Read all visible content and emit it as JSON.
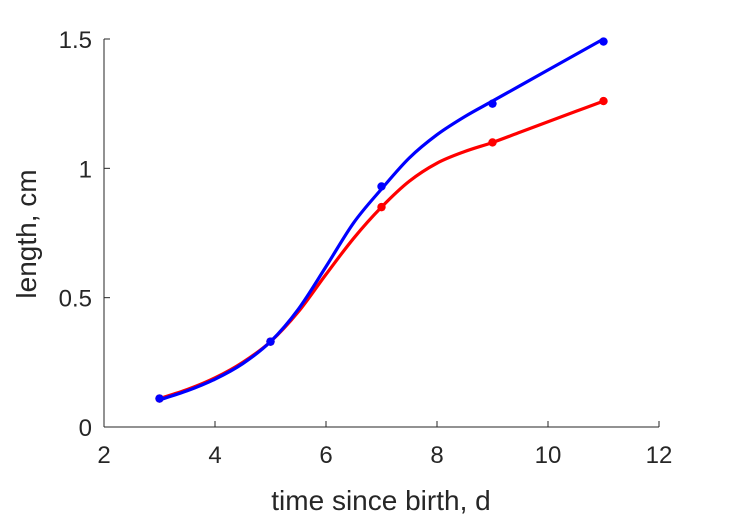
{
  "chart_data": {
    "type": "line",
    "title": "",
    "xlabel": "time since birth, d",
    "ylabel": "length, cm",
    "xlim": [
      2,
      12
    ],
    "ylim": [
      0,
      1.5
    ],
    "xticks": [
      "2",
      "4",
      "6",
      "8",
      "10",
      "12"
    ],
    "yticks": [
      "0",
      "0.5",
      "1",
      "1.5"
    ],
    "grid": false,
    "legend": "none",
    "series": [
      {
        "color": "#ff0000",
        "markers": {
          "x": [
            3,
            5,
            7,
            9,
            11
          ],
          "y": [
            0.11,
            0.33,
            0.85,
            1.1,
            1.26
          ]
        },
        "curve": {
          "x": [
            3,
            3.5,
            4,
            4.5,
            5,
            5.5,
            6,
            6.5,
            7,
            7.5,
            8,
            8.5,
            9,
            9.5,
            10,
            10.5,
            11
          ],
          "y": [
            0.11,
            0.145,
            0.19,
            0.25,
            0.33,
            0.445,
            0.59,
            0.73,
            0.85,
            0.95,
            1.02,
            1.065,
            1.1,
            1.14,
            1.18,
            1.22,
            1.26
          ]
        }
      },
      {
        "color": "#0000ff",
        "markers": {
          "x": [
            3,
            5,
            7,
            9,
            11
          ],
          "y": [
            0.11,
            0.33,
            0.93,
            1.25,
            1.49
          ]
        },
        "curve": {
          "x": [
            3,
            3.5,
            4,
            4.5,
            5,
            5.5,
            6,
            6.5,
            7,
            7.5,
            8,
            8.5,
            9,
            9.5,
            10,
            10.5,
            11
          ],
          "y": [
            0.105,
            0.14,
            0.185,
            0.245,
            0.33,
            0.455,
            0.62,
            0.79,
            0.92,
            1.04,
            1.13,
            1.2,
            1.26,
            1.32,
            1.38,
            1.44,
            1.5
          ]
        }
      }
    ]
  }
}
